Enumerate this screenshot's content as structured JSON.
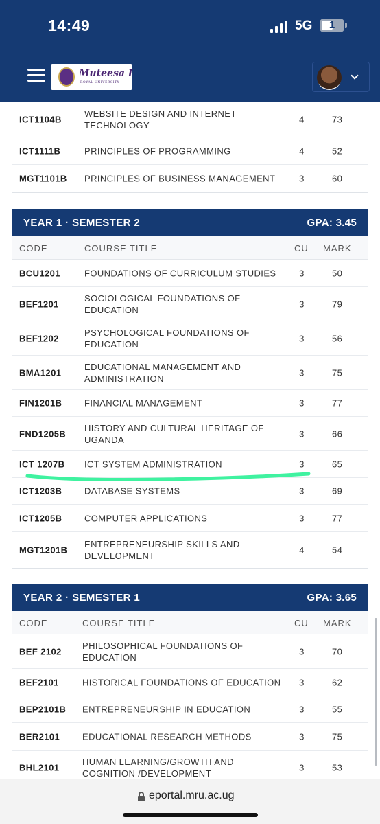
{
  "status_bar": {
    "time": "14:49",
    "network": "5G",
    "battery": "1"
  },
  "header": {
    "logo_name": "Muteesa I",
    "logo_subtitle": "ROYAL UNIVERSITY"
  },
  "columns": {
    "code": "CODE",
    "title": "COURSE TITLE",
    "cu": "CU",
    "mark": "MARK"
  },
  "prev_rows": [
    {
      "code": "ICT1104B",
      "title": "WEBSITE DESIGN AND INTERNET TECHNOLOGY",
      "cu": "4",
      "mark": "73"
    },
    {
      "code": "ICT1111B",
      "title": "PRINCIPLES OF PROGRAMMING",
      "cu": "4",
      "mark": "52"
    },
    {
      "code": "MGT1101B",
      "title": "PRINCIPLES OF BUSINESS MANAGEMENT",
      "cu": "3",
      "mark": "60"
    }
  ],
  "semesters": [
    {
      "title": "YEAR 1 · SEMESTER 2",
      "gpa": "GPA: 3.45",
      "rows": [
        {
          "code": "BCU1201",
          "title": "FOUNDATIONS OF CURRICULUM STUDIES",
          "cu": "3",
          "mark": "50"
        },
        {
          "code": "BEF1201",
          "title": "SOCIOLOGICAL FOUNDATIONS OF EDUCATION",
          "cu": "3",
          "mark": "79"
        },
        {
          "code": "BEF1202",
          "title": "PSYCHOLOGICAL FOUNDATIONS OF EDUCATION",
          "cu": "3",
          "mark": "56"
        },
        {
          "code": "BMA1201",
          "title": "EDUCATIONAL MANAGEMENT AND ADMINISTRATION",
          "cu": "3",
          "mark": "75"
        },
        {
          "code": "FIN1201B",
          "title": "FINANCIAL MANAGEMENT",
          "cu": "3",
          "mark": "77"
        },
        {
          "code": "FND1205B",
          "title": "HISTORY AND CULTURAL HERITAGE OF UGANDA",
          "cu": "3",
          "mark": "66"
        },
        {
          "code": "ICT 1207B",
          "title": "ICT SYSTEM ADMINISTRATION",
          "cu": "3",
          "mark": "65"
        },
        {
          "code": "ICT1203B",
          "title": "DATABASE SYSTEMS",
          "cu": "3",
          "mark": "69"
        },
        {
          "code": "ICT1205B",
          "title": "COMPUTER APPLICATIONS",
          "cu": "3",
          "mark": "77"
        },
        {
          "code": "MGT1201B",
          "title": "ENTREPRENEURSHIP SKILLS AND DEVELOPMENT",
          "cu": "4",
          "mark": "54"
        }
      ]
    },
    {
      "title": "YEAR 2 · SEMESTER 1",
      "gpa": "GPA: 3.65",
      "rows": [
        {
          "code": "BEF 2102",
          "title": "PHILOSOPHICAL FOUNDATIONS OF EDUCATION",
          "cu": "3",
          "mark": "70"
        },
        {
          "code": "BEF2101",
          "title": "HISTORICAL FOUNDATIONS OF EDUCATION",
          "cu": "3",
          "mark": "62"
        },
        {
          "code": "BEP2101B",
          "title": "ENTREPRENEURSHIP IN EDUCATION",
          "cu": "3",
          "mark": "55"
        },
        {
          "code": "BER2101",
          "title": "EDUCATIONAL RESEARCH METHODS",
          "cu": "3",
          "mark": "75"
        },
        {
          "code": "BHL2101",
          "title": "HUMAN LEARNING/GROWTH AND COGNITION /DEVELOPMENT",
          "cu": "3",
          "mark": "53"
        }
      ]
    }
  ],
  "browser": {
    "url": "eportal.mru.ac.ug"
  },
  "colors": {
    "header_bg": "#153a73",
    "highlight": "#3ff2a0"
  },
  "icons": {
    "menu": "hamburger-menu-icon",
    "lock": "lock-icon",
    "user": "avatar",
    "dropdown": "chevron-down-icon"
  }
}
